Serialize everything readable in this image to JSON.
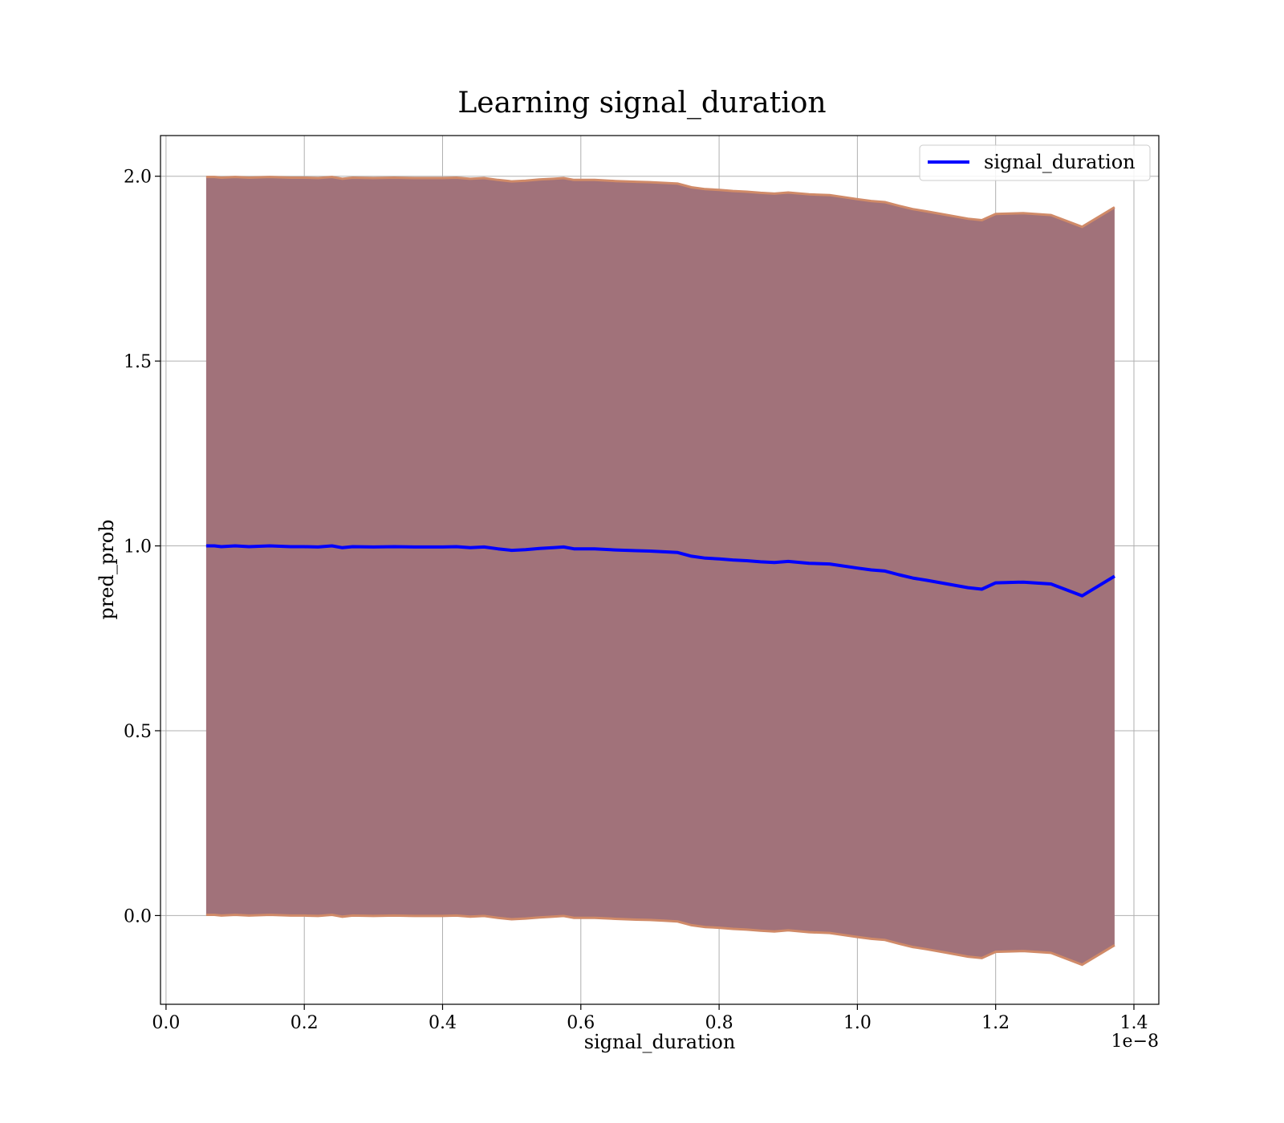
{
  "chart_data": {
    "type": "line",
    "title": "Learning signal_duration",
    "xlabel": "signal_duration",
    "ylabel": "pred_prob",
    "x_offset_label": "1e−8",
    "xlim": [
      -0.008,
      1.436
    ],
    "ylim": [
      -0.24,
      2.11
    ],
    "x_ticks": [
      0.0,
      0.2,
      0.4,
      0.6,
      0.8,
      1.0,
      1.2,
      1.4
    ],
    "x_tick_labels": [
      "0.0",
      "0.2",
      "0.4",
      "0.6",
      "0.8",
      "1.0",
      "1.2",
      "1.4"
    ],
    "y_ticks": [
      0.0,
      0.5,
      1.0,
      1.5,
      2.0
    ],
    "y_tick_labels": [
      "0.0",
      "0.5",
      "1.0",
      "1.5",
      "2.0"
    ],
    "grid": true,
    "legend": {
      "position": "top-right",
      "entries": [
        "signal_duration"
      ]
    },
    "colors": {
      "line": "#0000ff",
      "band_fill": "#a1727a",
      "band_edge": "#d08a68"
    },
    "series": [
      {
        "name": "signal_duration",
        "x": [
          0.058,
          0.07,
          0.08,
          0.1,
          0.12,
          0.15,
          0.18,
          0.2,
          0.22,
          0.24,
          0.255,
          0.27,
          0.3,
          0.33,
          0.36,
          0.4,
          0.42,
          0.44,
          0.46,
          0.48,
          0.5,
          0.52,
          0.54,
          0.56,
          0.575,
          0.59,
          0.62,
          0.65,
          0.68,
          0.7,
          0.72,
          0.74,
          0.76,
          0.78,
          0.8,
          0.82,
          0.84,
          0.86,
          0.88,
          0.9,
          0.93,
          0.96,
          1.0,
          1.02,
          1.04,
          1.06,
          1.08,
          1.1,
          1.13,
          1.16,
          1.18,
          1.2,
          1.24,
          1.28,
          1.325,
          1.372
        ],
        "y": [
          1.0,
          1.0,
          0.998,
          1.0,
          0.998,
          1.0,
          0.998,
          0.998,
          0.997,
          1.0,
          0.995,
          0.998,
          0.997,
          0.998,
          0.997,
          0.997,
          0.998,
          0.995,
          0.997,
          0.992,
          0.988,
          0.99,
          0.993,
          0.995,
          0.997,
          0.992,
          0.992,
          0.989,
          0.987,
          0.986,
          0.984,
          0.982,
          0.972,
          0.967,
          0.965,
          0.962,
          0.96,
          0.957,
          0.955,
          0.958,
          0.953,
          0.951,
          0.94,
          0.935,
          0.932,
          0.922,
          0.913,
          0.907,
          0.897,
          0.887,
          0.883,
          0.9,
          0.902,
          0.897,
          0.865,
          0.918
        ],
        "upper": [
          1.998,
          1.998,
          1.996,
          1.998,
          1.996,
          1.998,
          1.996,
          1.996,
          1.995,
          1.998,
          1.993,
          1.996,
          1.995,
          1.996,
          1.995,
          1.995,
          1.996,
          1.993,
          1.995,
          1.99,
          1.986,
          1.988,
          1.991,
          1.993,
          1.995,
          1.99,
          1.99,
          1.987,
          1.985,
          1.984,
          1.982,
          1.98,
          1.97,
          1.965,
          1.963,
          1.96,
          1.958,
          1.955,
          1.953,
          1.956,
          1.951,
          1.949,
          1.938,
          1.933,
          1.93,
          1.92,
          1.911,
          1.905,
          1.895,
          1.885,
          1.881,
          1.898,
          1.9,
          1.895,
          1.863,
          1.916
        ],
        "lower": [
          0.002,
          0.002,
          0.0,
          0.002,
          0.0,
          0.002,
          0.0,
          0.0,
          -0.001,
          0.002,
          -0.003,
          0.0,
          -0.001,
          0.0,
          -0.001,
          -0.001,
          0.0,
          -0.003,
          -0.001,
          -0.006,
          -0.01,
          -0.008,
          -0.005,
          -0.003,
          -0.001,
          -0.006,
          -0.006,
          -0.009,
          -0.011,
          -0.012,
          -0.014,
          -0.016,
          -0.026,
          -0.031,
          -0.033,
          -0.036,
          -0.038,
          -0.041,
          -0.043,
          -0.04,
          -0.045,
          -0.047,
          -0.058,
          -0.063,
          -0.066,
          -0.076,
          -0.085,
          -0.091,
          -0.101,
          -0.111,
          -0.115,
          -0.098,
          -0.096,
          -0.101,
          -0.133,
          -0.08
        ]
      }
    ]
  }
}
